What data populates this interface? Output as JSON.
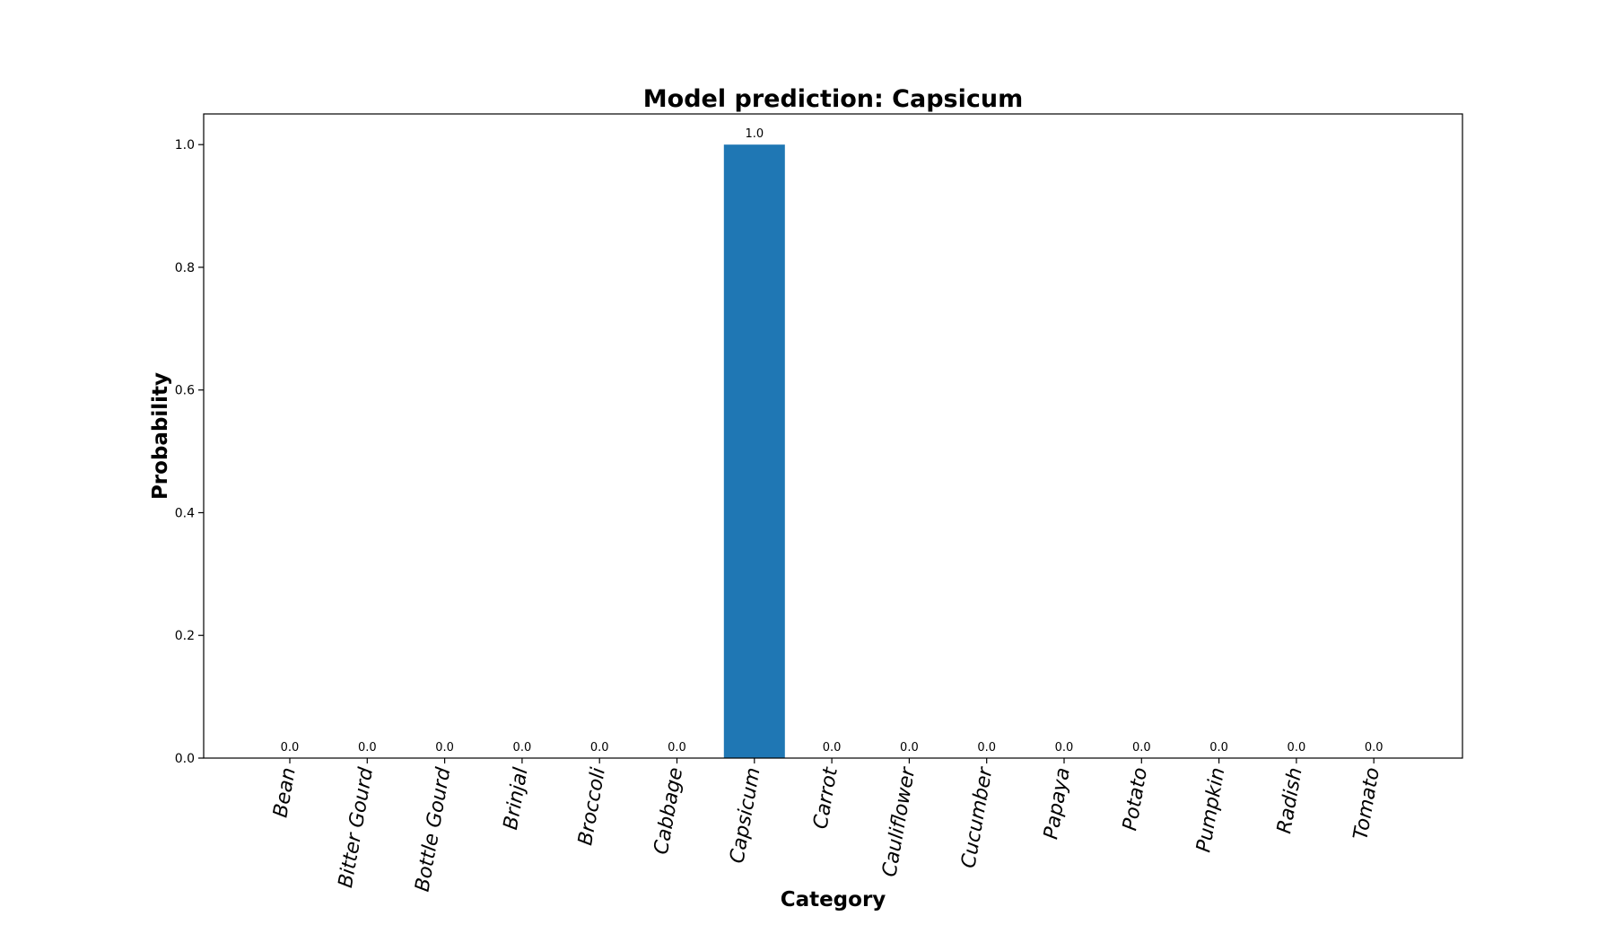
{
  "chart_data": {
    "type": "bar",
    "title": "Model prediction: Capsicum",
    "xlabel": "Category",
    "ylabel": "Probability",
    "categories": [
      "Bean",
      "Bitter Gourd",
      "Bottle Gourd",
      "Brinjal",
      "Broccoli",
      "Cabbage",
      "Capsicum",
      "Carrot",
      "Cauliflower",
      "Cucumber",
      "Papaya",
      "Potato",
      "Pumpkin",
      "Radish",
      "Tomato"
    ],
    "values": [
      0.0,
      0.0,
      0.0,
      0.0,
      0.0,
      0.0,
      1.0,
      0.0,
      0.0,
      0.0,
      0.0,
      0.0,
      0.0,
      0.0,
      0.0
    ],
    "data_labels": [
      "0.0",
      "0.0",
      "0.0",
      "0.0",
      "0.0",
      "0.0",
      "1.0",
      "0.0",
      "0.0",
      "0.0",
      "0.0",
      "0.0",
      "0.0",
      "0.0",
      "0.0"
    ],
    "yticks": [
      0.0,
      0.2,
      0.4,
      0.6,
      0.8,
      1.0
    ],
    "ytick_labels": [
      "0.0",
      "0.2",
      "0.4",
      "0.6",
      "0.8",
      "1.0"
    ],
    "ylim": [
      0,
      1.05
    ],
    "bar_color": "#1f77b4",
    "grid": false,
    "legend": "none"
  }
}
